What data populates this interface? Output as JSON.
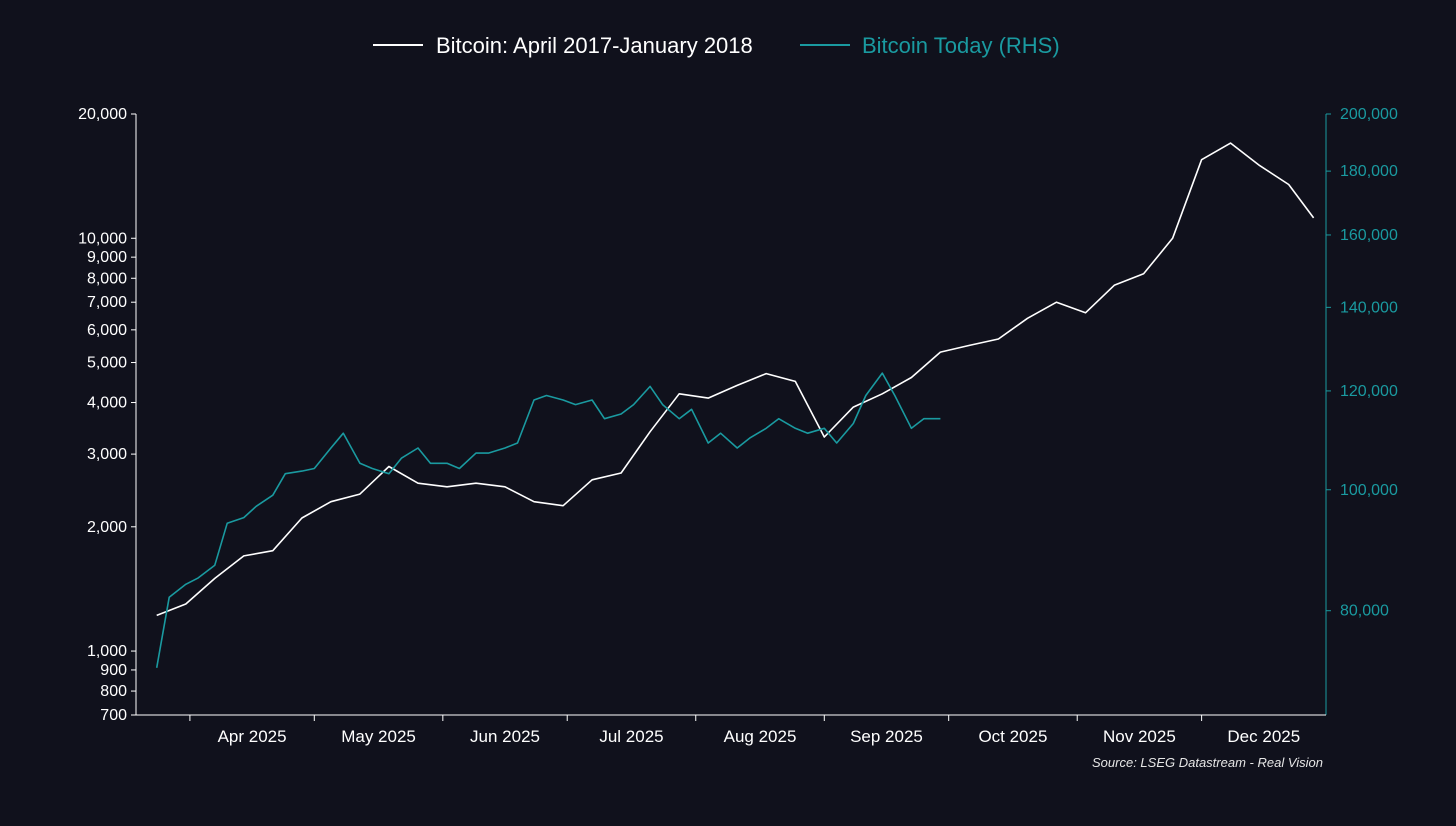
{
  "chart_data": {
    "type": "line",
    "title": "",
    "legend_position": "top-center",
    "grid": false,
    "source": "Source: LSEG Datastream - Real Vision",
    "x_ticks": [
      "Apr 2025",
      "May 2025",
      "Jun 2025",
      "Jul 2025",
      "Aug 2025",
      "Sep 2025",
      "Oct 2025",
      "Nov 2025",
      "Dec 2025"
    ],
    "y_left": {
      "scale": "log",
      "range": [
        700,
        20000
      ],
      "ticks": [
        700,
        800,
        900,
        1000,
        2000,
        3000,
        4000,
        5000,
        6000,
        7000,
        8000,
        9000,
        10000,
        20000
      ],
      "tick_labels": [
        "700",
        "800",
        "900",
        "1,000",
        "2,000",
        "3,000",
        "4,000",
        "5,000",
        "6,000",
        "7,000",
        "8,000",
        "9,000",
        "10,000",
        "20,000"
      ]
    },
    "y_right": {
      "scale": "log",
      "range": [
        66000,
        200000
      ],
      "ticks": [
        80000,
        100000,
        120000,
        140000,
        160000,
        180000,
        200000
      ],
      "tick_labels": [
        "80,000",
        "100,000",
        "120,000",
        "140,000",
        "160,000",
        "180,000",
        "200,000"
      ]
    },
    "colors": {
      "background": "#10111c",
      "series_2017": "#ffffff",
      "series_today": "#1a9aa0",
      "axis_right": "#1a9aa0"
    },
    "series": [
      {
        "name": "Bitcoin: April 2017-January 2018",
        "axis": "left",
        "x": [
          "2025-03-24",
          "2025-03-31",
          "2025-04-07",
          "2025-04-14",
          "2025-04-21",
          "2025-04-28",
          "2025-05-05",
          "2025-05-12",
          "2025-05-19",
          "2025-05-26",
          "2025-06-02",
          "2025-06-09",
          "2025-06-16",
          "2025-06-23",
          "2025-06-30",
          "2025-07-07",
          "2025-07-14",
          "2025-07-21",
          "2025-07-28",
          "2025-08-04",
          "2025-08-11",
          "2025-08-18",
          "2025-08-25",
          "2025-09-01",
          "2025-09-08",
          "2025-09-15",
          "2025-09-22",
          "2025-09-29",
          "2025-10-06",
          "2025-10-13",
          "2025-10-20",
          "2025-10-27",
          "2025-11-03",
          "2025-11-10",
          "2025-11-17",
          "2025-11-24",
          "2025-12-01",
          "2025-12-08",
          "2025-12-15",
          "2025-12-22",
          "2025-12-28"
        ],
        "values": [
          1220,
          1300,
          1500,
          1700,
          1750,
          2100,
          2300,
          2400,
          2800,
          2550,
          2500,
          2550,
          2500,
          2300,
          2250,
          2600,
          2700,
          3400,
          4200,
          4100,
          4400,
          4700,
          4500,
          3300,
          3900,
          4200,
          4600,
          5300,
          5500,
          5700,
          6400,
          7000,
          6600,
          7700,
          8200,
          10000,
          15500,
          17000,
          15000,
          13500,
          11200
        ]
      },
      {
        "name": "Bitcoin Today (RHS)",
        "axis": "right",
        "x": [
          "2025-03-24",
          "2025-03-27",
          "2025-03-31",
          "2025-04-03",
          "2025-04-07",
          "2025-04-10",
          "2025-04-14",
          "2025-04-17",
          "2025-04-21",
          "2025-04-24",
          "2025-04-28",
          "2025-05-01",
          "2025-05-05",
          "2025-05-08",
          "2025-05-12",
          "2025-05-15",
          "2025-05-19",
          "2025-05-22",
          "2025-05-26",
          "2025-05-29",
          "2025-06-02",
          "2025-06-05",
          "2025-06-09",
          "2025-06-12",
          "2025-06-16",
          "2025-06-19",
          "2025-06-23",
          "2025-06-26",
          "2025-06-30",
          "2025-07-03",
          "2025-07-07",
          "2025-07-10",
          "2025-07-14",
          "2025-07-17",
          "2025-07-21",
          "2025-07-24",
          "2025-07-28",
          "2025-07-31",
          "2025-08-04",
          "2025-08-07",
          "2025-08-11",
          "2025-08-14",
          "2025-08-18",
          "2025-08-21",
          "2025-08-25",
          "2025-08-28",
          "2025-09-01",
          "2025-09-04",
          "2025-09-08",
          "2025-09-11",
          "2025-09-15",
          "2025-09-18",
          "2025-09-22",
          "2025-09-25",
          "2025-09-29"
        ],
        "values": [
          72000,
          82000,
          84000,
          85000,
          87000,
          94000,
          95000,
          97000,
          99000,
          103000,
          103500,
          104000,
          108000,
          111000,
          105000,
          104000,
          103000,
          106000,
          108000,
          105000,
          105000,
          104000,
          107000,
          107000,
          108000,
          109000,
          118000,
          119000,
          118000,
          117000,
          118000,
          114000,
          115000,
          117000,
          121000,
          117000,
          114000,
          116000,
          109000,
          111000,
          108000,
          110000,
          112000,
          114000,
          112000,
          111000,
          112000,
          109000,
          113000,
          119000,
          124000,
          119000,
          112000,
          114000,
          114000
        ]
      }
    ]
  }
}
